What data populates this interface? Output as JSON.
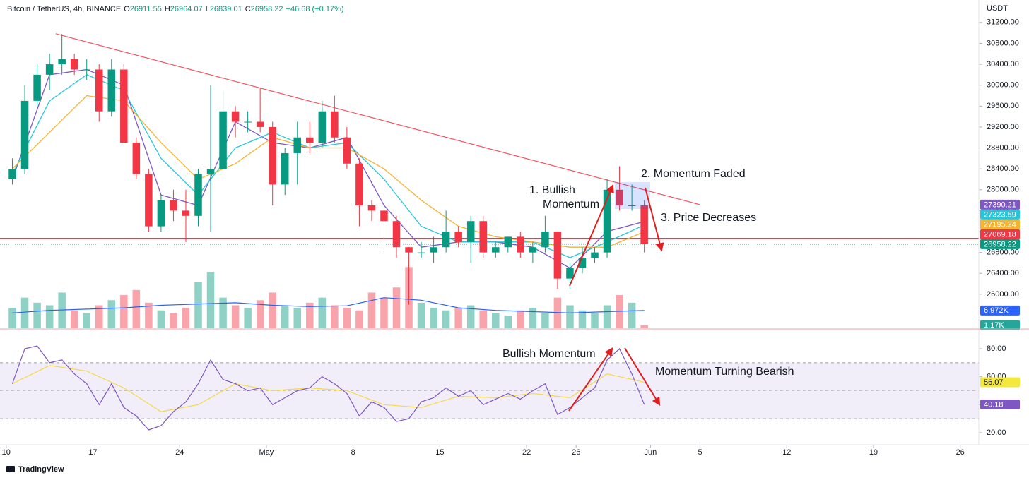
{
  "header": {
    "symbol": "Bitcoin / TetherUS, 4h, BINANCE",
    "fields": [
      [
        "O",
        "26911.55"
      ],
      [
        "H",
        "26964.07"
      ],
      [
        "L",
        "26839.01"
      ]
    ],
    "close_key": "C",
    "change": "+46.68 (+0.17%)",
    "currency": "USDT",
    "brand": "TradingView"
  },
  "chart_data": [
    {
      "type": "candlestick",
      "up_color": "#089981",
      "down_color": "#f23645",
      "last_color": "#089981",
      "x": [
        "04-10",
        "04-11",
        "04-12",
        "04-13",
        "04-14",
        "04-15",
        "04-16",
        "04-17",
        "04-18",
        "04-19",
        "04-20",
        "04-21",
        "04-22",
        "04-23",
        "04-24",
        "04-25",
        "04-26",
        "04-27",
        "04-28",
        "04-29",
        "04-30",
        "05-01",
        "05-02",
        "05-03",
        "05-04",
        "05-05",
        "05-06",
        "05-07",
        "05-08",
        "05-09",
        "05-10",
        "05-11",
        "05-12",
        "05-13",
        "05-14",
        "05-15",
        "05-16",
        "05-17",
        "05-18",
        "05-19",
        "05-20",
        "05-21",
        "05-22",
        "05-23",
        "05-24",
        "05-25",
        "05-26",
        "05-27",
        "05-28",
        "05-29",
        "05-30",
        "05-31"
      ],
      "open": [
        28200,
        28400,
        29700,
        30200,
        30400,
        30500,
        30300,
        30300,
        29500,
        30300,
        28900,
        28300,
        27300,
        27800,
        27600,
        27500,
        28300,
        28400,
        29500,
        29300,
        29300,
        29200,
        28100,
        28700,
        29000,
        28900,
        29500,
        29000,
        28500,
        27700,
        27600,
        27400,
        26900,
        26800,
        26800,
        26900,
        27200,
        27000,
        27400,
        26800,
        26900,
        27100,
        26800,
        26900,
        27200,
        26300,
        26500,
        26700,
        26800,
        28000,
        27700,
        27700
      ],
      "high": [
        28600,
        30000,
        30400,
        30600,
        30980,
        30600,
        30500,
        30400,
        30500,
        30400,
        29000,
        28400,
        27900,
        28000,
        28000,
        28400,
        30000,
        29900,
        29600,
        29500,
        29950,
        29300,
        28800,
        29300,
        29300,
        29700,
        29800,
        29200,
        28600,
        27800,
        28300,
        27500,
        26900,
        27000,
        27100,
        27600,
        27300,
        27500,
        27500,
        27000,
        27100,
        27200,
        27000,
        27500,
        27200,
        26600,
        26900,
        26900,
        28200,
        28450,
        28100,
        27800
      ],
      "low": [
        28100,
        28300,
        29600,
        29900,
        30200,
        30200,
        30100,
        29300,
        29400,
        28900,
        28200,
        27200,
        27200,
        27400,
        27000,
        27300,
        27200,
        28400,
        29000,
        29100,
        29100,
        27700,
        27900,
        28100,
        28700,
        28800,
        28900,
        28400,
        27300,
        27400,
        26800,
        26700,
        25800,
        26700,
        26600,
        26800,
        26900,
        26600,
        26700,
        26700,
        26800,
        26700,
        26600,
        26800,
        26100,
        26100,
        26400,
        26600,
        26700,
        27600,
        27600,
        26800
      ],
      "close": [
        28400,
        29700,
        30200,
        30400,
        30500,
        30300,
        30300,
        29500,
        30300,
        28900,
        28300,
        27300,
        27800,
        27600,
        27500,
        28300,
        28400,
        29500,
        29300,
        29300,
        29200,
        28100,
        28700,
        29000,
        28900,
        29500,
        29000,
        28500,
        27700,
        27600,
        27400,
        26900,
        26800,
        26800,
        26900,
        27200,
        27000,
        27400,
        26800,
        26900,
        27100,
        26800,
        26900,
        27200,
        26300,
        26500,
        26700,
        26800,
        28000,
        27700,
        27700,
        26958.22
      ],
      "xlim": [
        "04-09T12:00",
        "06-27T12:00"
      ],
      "ylim": [
        25350,
        31630
      ],
      "yticks": [
        {
          "value": 26000,
          "label": "26000.00"
        },
        {
          "value": 26400,
          "label": "26400.00"
        },
        {
          "value": 26800,
          "label": "26800.00"
        },
        {
          "value": 27200,
          "label": "27200.00"
        },
        {
          "value": 27600,
          "label": "27600.00"
        },
        {
          "value": 28000,
          "label": "28000.00"
        },
        {
          "value": 28400,
          "label": "28400.00"
        },
        {
          "value": 28800,
          "label": "28800.00"
        },
        {
          "value": 29200,
          "label": "29200.00"
        },
        {
          "value": 29600,
          "label": "29600.00"
        },
        {
          "value": 30000,
          "label": "30000.00"
        },
        {
          "value": 30400,
          "label": "30400.00"
        },
        {
          "value": 30800,
          "label": "30800.00"
        },
        {
          "value": 31200,
          "label": "31200.00"
        }
      ],
      "xticks": [
        {
          "value": "04-10",
          "label": "10"
        },
        {
          "value": "04-17",
          "label": "17"
        },
        {
          "value": "04-24",
          "label": "24"
        },
        {
          "value": "05-01",
          "label": "May"
        },
        {
          "value": "05-08",
          "label": "8"
        },
        {
          "value": "05-15",
          "label": "15"
        },
        {
          "value": "05-22",
          "label": "22"
        },
        {
          "value": "05-26",
          "label": "26"
        },
        {
          "value": "06-01",
          "label": "Jun"
        },
        {
          "value": "06-05",
          "label": "5"
        },
        {
          "value": "06-12",
          "label": "12"
        },
        {
          "value": "06-19",
          "label": "19"
        },
        {
          "value": "06-26",
          "label": "26"
        }
      ],
      "overlays": {
        "x": [
          "04-10",
          "04-13",
          "04-16",
          "04-19",
          "04-22",
          "04-25",
          "04-28",
          "05-01",
          "05-04",
          "05-07",
          "05-10",
          "05-13",
          "05-16",
          "05-19",
          "05-22",
          "05-25",
          "05-28",
          "05-31"
        ],
        "series": [
          {
            "color": "#7e57c2",
            "values": [
              28200,
              30200,
              30300,
              30000,
              27900,
              27700,
              29300,
              28900,
              28800,
              29000,
              27700,
              26900,
              27000,
              27000,
              26900,
              26500,
              27200,
              27390.21
            ]
          },
          {
            "color": "#26c6da",
            "values": [
              28300,
              29700,
              30200,
              29900,
              28600,
              27900,
              28800,
              29100,
              28800,
              28900,
              28200,
              27300,
              27000,
              27000,
              27000,
              26700,
              27000,
              27323.59
            ]
          },
          {
            "color": "#f5b330",
            "values": [
              28400,
              29100,
              29800,
              29700,
              28900,
              28200,
              28500,
              29000,
              28800,
              28800,
              28400,
              27800,
              27300,
              27100,
              27000,
              26900,
              26900,
              27195.24
            ]
          }
        ]
      },
      "hline": {
        "value": 27069.18,
        "color": "#f23645"
      },
      "trendline": {
        "x": [
          "04-14",
          "06-05"
        ],
        "values": [
          30984,
          27714
        ],
        "color": "#f7525f"
      },
      "volume": {
        "ylim": [
          0,
          36
        ],
        "values": [
          8,
          12,
          10,
          9,
          14,
          7,
          6,
          9,
          11,
          13,
          15,
          10,
          7,
          6,
          8,
          18,
          22,
          12,
          9,
          8,
          11,
          14,
          9,
          8,
          10,
          12,
          9,
          8,
          7,
          14,
          12,
          16,
          24,
          10,
          8,
          7,
          8,
          9,
          7,
          6,
          5,
          7,
          8,
          6,
          12,
          9,
          7,
          6,
          9,
          13,
          10,
          1.17
        ],
        "last_value_label": "1.17K",
        "tag_color": "#26a69a"
      },
      "volume_ma": {
        "color": "#2962ff",
        "values": [
          6,
          7,
          7.5,
          8,
          9,
          9.5,
          10,
          9,
          8.5,
          8.8,
          12,
          11,
          8,
          7,
          6.5,
          6,
          6.5,
          6.972
        ],
        "last_value_label": "6.972K"
      },
      "annotations": [
        {
          "text": [
            "1. Bullish",
            "Momentum"
          ]
        },
        {
          "text": [
            "2. Momentum Faded"
          ]
        },
        {
          "text": [
            "3. Price Decreases"
          ]
        }
      ]
    },
    {
      "type": "line",
      "color": "#7e57c2",
      "x": [
        "04-10",
        "04-11",
        "04-12",
        "04-13",
        "04-14",
        "04-15",
        "04-16",
        "04-17",
        "04-18",
        "04-19",
        "04-20",
        "04-21",
        "04-22",
        "04-23",
        "04-24",
        "04-25",
        "04-26",
        "04-27",
        "04-28",
        "04-29",
        "04-30",
        "05-01",
        "05-02",
        "05-03",
        "05-04",
        "05-05",
        "05-06",
        "05-07",
        "05-08",
        "05-09",
        "05-10",
        "05-11",
        "05-12",
        "05-13",
        "05-14",
        "05-15",
        "05-16",
        "05-17",
        "05-18",
        "05-19",
        "05-20",
        "05-21",
        "05-22",
        "05-23",
        "05-24",
        "05-25",
        "05-26",
        "05-27",
        "05-28",
        "05-29",
        "05-30",
        "05-31"
      ],
      "values": [
        55,
        80,
        82,
        70,
        72,
        62,
        55,
        40,
        55,
        38,
        32,
        22,
        25,
        35,
        42,
        55,
        72,
        58,
        55,
        50,
        52,
        40,
        45,
        50,
        52,
        60,
        55,
        48,
        32,
        42,
        38,
        28,
        30,
        42,
        45,
        52,
        46,
        50,
        40,
        44,
        48,
        44,
        50,
        55,
        33,
        38,
        45,
        52,
        72,
        80,
        62,
        40.18
      ],
      "ylim": [
        11.4,
        89.6
      ],
      "yticks": [
        {
          "value": 20,
          "label": "20.00"
        },
        {
          "value": 40,
          "label": "40.00"
        },
        {
          "value": 60,
          "label": "60.00"
        },
        {
          "value": 80,
          "label": "80.00"
        }
      ],
      "bands": [
        30,
        50,
        70
      ],
      "ma": {
        "color": "#f5d94a",
        "x": [
          "04-10",
          "04-13",
          "04-16",
          "04-19",
          "04-22",
          "04-25",
          "04-28",
          "05-01",
          "05-04",
          "05-07",
          "05-10",
          "05-13",
          "05-16",
          "05-19",
          "05-22",
          "05-25",
          "05-28",
          "05-31"
        ],
        "values": [
          55,
          68,
          64,
          52,
          35,
          40,
          55,
          50,
          52,
          50,
          40,
          38,
          46,
          45,
          48,
          45,
          62,
          56.07
        ],
        "tag_color": "#f5e83c"
      },
      "annotations": [
        {
          "text": [
            "Bullish Momentum"
          ]
        },
        {
          "text": [
            "Momentum Turning Bearish"
          ]
        }
      ]
    }
  ]
}
